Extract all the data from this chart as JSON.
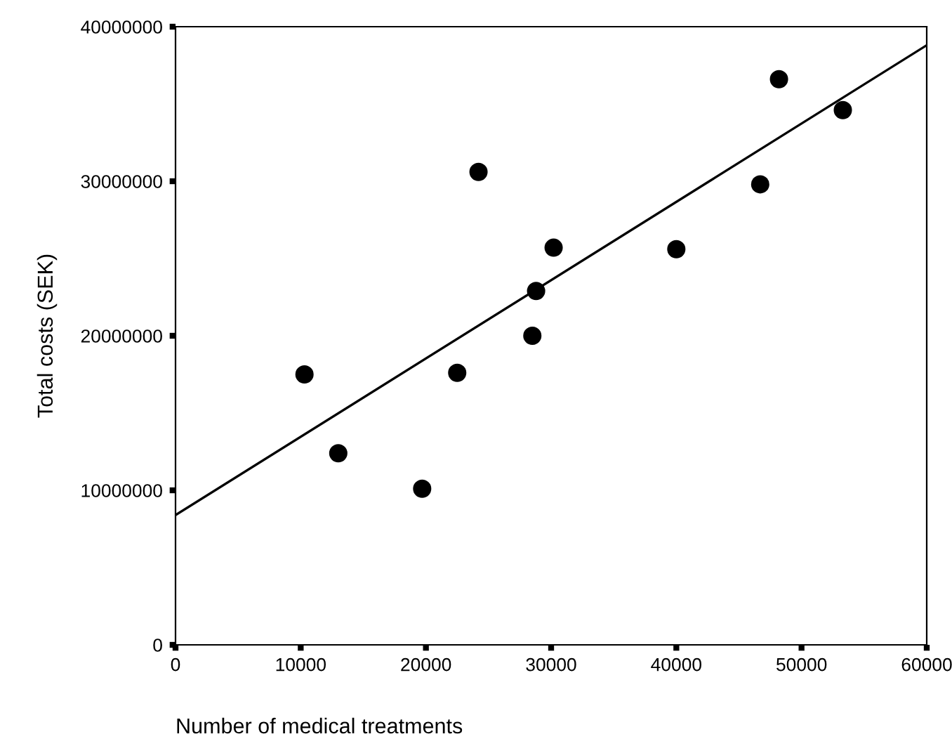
{
  "chart_data": {
    "type": "scatter",
    "xlabel": "Number of medical treatments",
    "ylabel": "Total costs (SEK)",
    "xlim": [
      0,
      60000
    ],
    "ylim": [
      0,
      40000000
    ],
    "xticks": [
      0,
      10000,
      20000,
      30000,
      40000,
      50000,
      60000
    ],
    "yticks": [
      0,
      10000000,
      20000000,
      30000000,
      40000000
    ],
    "grid": false,
    "legend": false,
    "series": [
      {
        "color": "#000000",
        "marker": "circle",
        "x": [
          10300,
          13000,
          19700,
          22500,
          28500,
          24200,
          30200,
          28800,
          40000,
          46700,
          48200,
          53300
        ],
        "values": [
          17500000,
          12400000,
          10100000,
          17600000,
          20000000,
          30600000,
          25700000,
          22900000,
          25600000,
          29800000,
          36600000,
          34600000
        ]
      },
      {
        "type": "line",
        "color": "#000000",
        "line_style": "solid",
        "marker": "none",
        "x": [
          0,
          60000
        ],
        "values": [
          8400000,
          38800000
        ]
      }
    ]
  }
}
